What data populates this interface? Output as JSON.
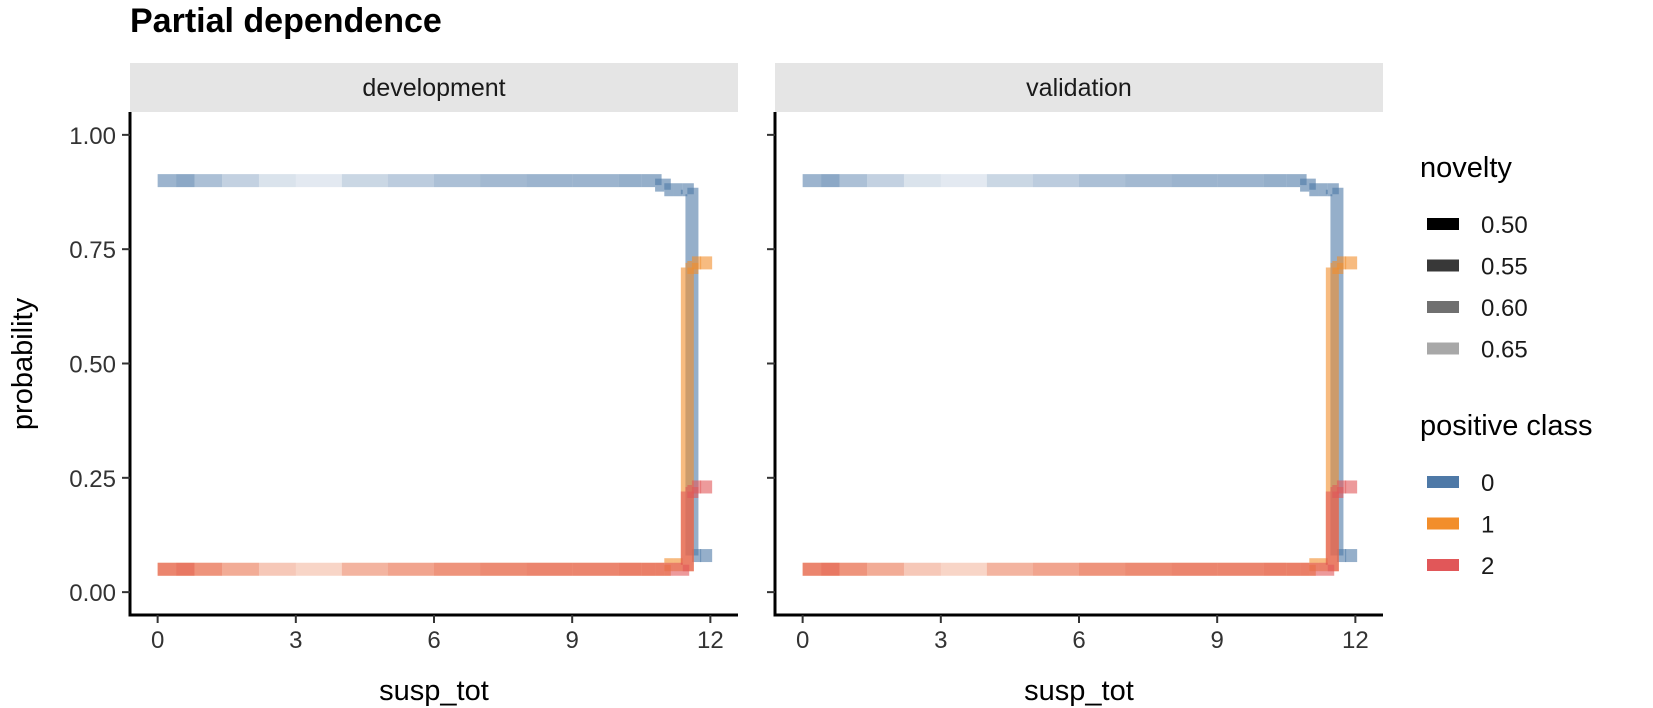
{
  "title": "Partial dependence",
  "colors": {
    "class_0": "#4e79a7",
    "class_1": "#f28e2b",
    "class_2": "#e15759",
    "strip_bg": "#e5e5e5"
  },
  "chart_data": {
    "type": "line",
    "title": "Partial dependence",
    "xlabel": "susp_tot",
    "ylabel": "probability",
    "xlim": [
      -0.6,
      12.6
    ],
    "ylim": [
      -0.05,
      1.05
    ],
    "x_ticks": [
      "0",
      "3",
      "6",
      "9",
      "12"
    ],
    "y_ticks": [
      "0.00",
      "0.25",
      "0.50",
      "0.75",
      "1.00"
    ],
    "grid": false,
    "legend_position": "right",
    "facets": [
      "development",
      "validation"
    ],
    "x": [
      0,
      0.4,
      0.8,
      1.4,
      2.2,
      3.0,
      4.0,
      5.0,
      6.0,
      7.0,
      8.0,
      9.0,
      10.0,
      10.5,
      10.8,
      11.0,
      11.2,
      11.4,
      11.5,
      11.6,
      11.8
    ],
    "novelty": [
      0.6,
      0.58,
      0.62,
      0.65,
      0.68,
      0.69,
      0.66,
      0.64,
      0.62,
      0.61,
      0.6,
      0.6,
      0.59,
      0.59,
      0.59,
      0.59,
      0.59,
      0.59,
      0.59,
      0.59,
      0.59
    ],
    "novelty_legend": {
      "title": "novelty",
      "entries": [
        "0.50",
        "0.55",
        "0.60",
        "0.65"
      ]
    },
    "class_legend": {
      "title": "positive class",
      "entries": [
        "0",
        "1",
        "2"
      ]
    },
    "series": [
      {
        "name": "0",
        "values": [
          0.9,
          0.9,
          0.9,
          0.9,
          0.9,
          0.9,
          0.9,
          0.9,
          0.9,
          0.9,
          0.9,
          0.9,
          0.9,
          0.9,
          0.89,
          0.88,
          0.88,
          0.88,
          0.87,
          0.08,
          0.08
        ]
      },
      {
        "name": "1",
        "values": [
          0.05,
          0.05,
          0.05,
          0.05,
          0.05,
          0.05,
          0.05,
          0.05,
          0.05,
          0.05,
          0.05,
          0.05,
          0.05,
          0.05,
          0.05,
          0.06,
          0.06,
          0.06,
          0.71,
          0.72,
          0.72
        ]
      },
      {
        "name": "2",
        "values": [
          0.05,
          0.05,
          0.05,
          0.05,
          0.05,
          0.05,
          0.05,
          0.05,
          0.05,
          0.05,
          0.05,
          0.05,
          0.05,
          0.05,
          0.05,
          0.05,
          0.05,
          0.06,
          0.22,
          0.23,
          0.23
        ]
      }
    ]
  }
}
